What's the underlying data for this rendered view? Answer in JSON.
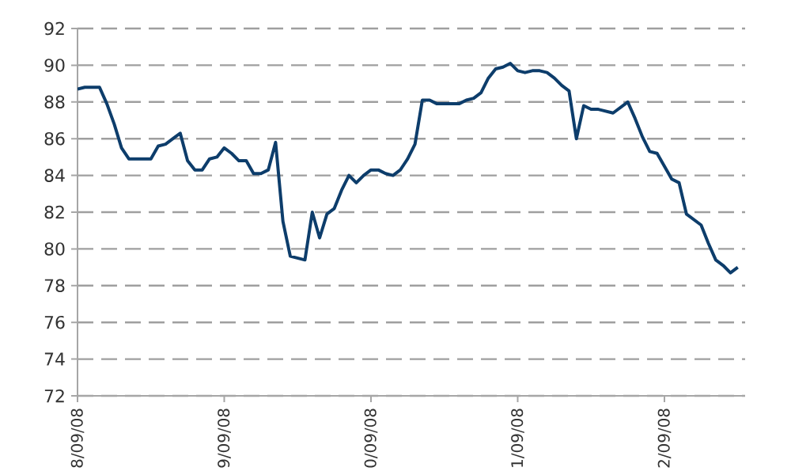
{
  "chart_data": {
    "type": "line",
    "categories": [
      "8/09/08",
      null,
      null,
      null,
      null,
      null,
      null,
      null,
      null,
      null,
      null,
      null,
      null,
      null,
      null,
      null,
      null,
      null,
      null,
      null,
      "9/09/08",
      null,
      null,
      null,
      null,
      null,
      null,
      null,
      null,
      null,
      null,
      null,
      null,
      null,
      null,
      null,
      null,
      null,
      null,
      null,
      "0/09/08",
      null,
      null,
      null,
      null,
      null,
      null,
      null,
      null,
      null,
      null,
      null,
      null,
      null,
      null,
      null,
      null,
      null,
      null,
      null,
      "1/09/08",
      null,
      null,
      null,
      null,
      null,
      null,
      null,
      null,
      null,
      null,
      null,
      null,
      null,
      null,
      null,
      null,
      null,
      null,
      null,
      "2/09/08",
      null,
      null,
      null,
      null,
      null,
      null,
      null,
      null,
      null,
      null
    ],
    "series": [
      {
        "color": "#0d3d6b",
        "values": [
          88.7,
          88.8,
          88.8,
          88.8,
          87.9,
          86.8,
          85.5,
          84.9,
          84.9,
          84.9,
          84.9,
          85.6,
          85.7,
          86.0,
          86.3,
          84.8,
          84.3,
          84.3,
          84.9,
          85.0,
          85.5,
          85.2,
          84.8,
          84.8,
          84.1,
          84.1,
          84.3,
          85.8,
          81.5,
          79.6,
          79.5,
          79.4,
          82.0,
          80.6,
          81.9,
          82.2,
          83.2,
          84.0,
          83.6,
          84.0,
          84.3,
          84.3,
          84.1,
          84.0,
          84.3,
          84.9,
          85.7,
          88.1,
          88.1,
          87.9,
          87.9,
          87.9,
          87.9,
          88.1,
          88.2,
          88.5,
          89.3,
          89.8,
          89.9,
          90.1,
          89.7,
          89.6,
          89.7,
          89.7,
          89.6,
          89.3,
          88.9,
          88.6,
          86.0,
          87.8,
          87.6,
          87.6,
          87.5,
          87.4,
          87.7,
          88.0,
          87.1,
          86.1,
          85.3,
          85.2,
          84.5,
          83.8,
          83.6,
          81.9,
          81.6,
          81.3,
          80.3,
          79.4,
          79.1,
          78.7,
          79.0
        ]
      }
    ],
    "ylim": [
      72,
      92
    ],
    "yticks": [
      72,
      74,
      76,
      78,
      80,
      82,
      84,
      86,
      88,
      90,
      92
    ],
    "grid": "y",
    "line_style": "solid",
    "marker": "none"
  }
}
